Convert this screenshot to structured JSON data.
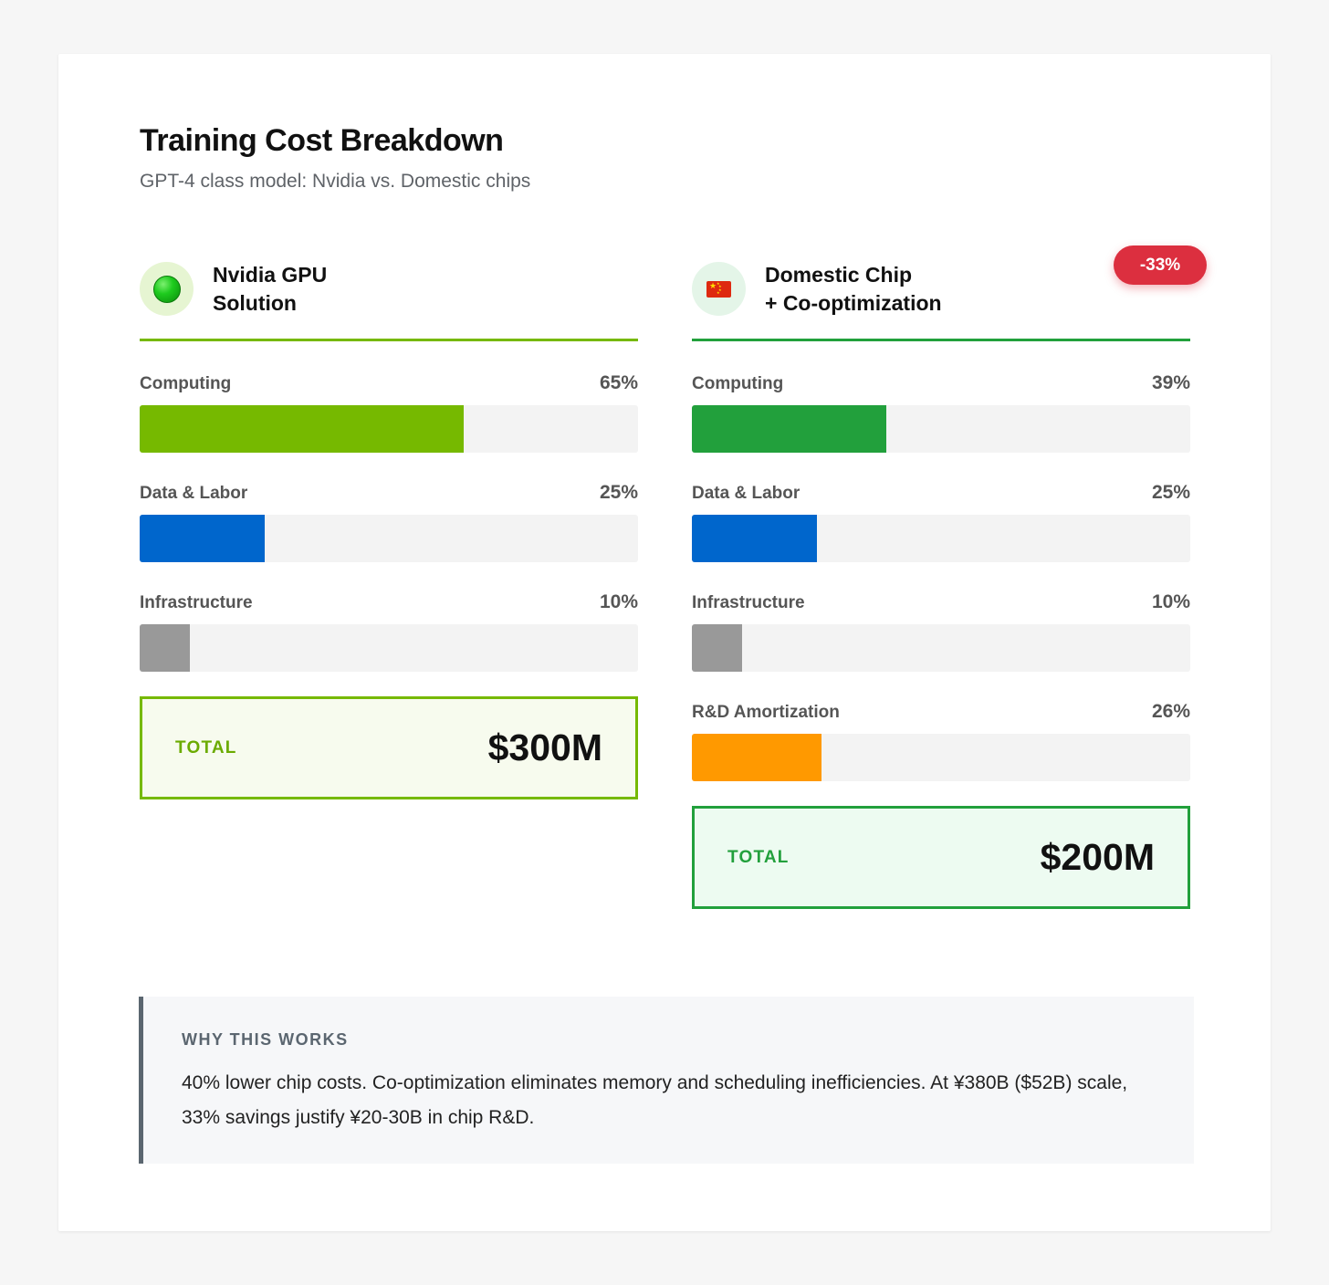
{
  "header": {
    "title": "Training Cost Breakdown",
    "subtitle": "GPT-4 class model: Nvidia vs. Domestic chips"
  },
  "colors": {
    "nvidia_green": "#76b900",
    "domestic_green": "#22a03c",
    "blue": "#0066cc",
    "gray": "#999999",
    "orange": "#ff9900",
    "badge_red": "#dc2f3f"
  },
  "chart_data": [
    {
      "type": "bar",
      "orientation": "horizontal",
      "title_line1": "Nvidia GPU",
      "title_line2": "Solution",
      "icon": "green-circle-icon",
      "categories": [
        "Computing",
        "Data & Labor",
        "Infrastructure"
      ],
      "values": [
        65,
        25,
        10
      ],
      "value_labels": [
        "65%",
        "25%",
        "10%"
      ],
      "colors": [
        "#76b900",
        "#0066cc",
        "#999999"
      ],
      "xlim": [
        0,
        100
      ],
      "total_label": "TOTAL",
      "total_value": "$300M"
    },
    {
      "type": "bar",
      "orientation": "horizontal",
      "title_line1": "Domestic Chip",
      "title_line2": "+ Co-optimization",
      "icon": "china-flag-icon",
      "badge": "-33%",
      "categories": [
        "Computing",
        "Data & Labor",
        "Infrastructure",
        "R&D Amortization"
      ],
      "values": [
        39,
        25,
        10,
        26
      ],
      "value_labels": [
        "39%",
        "25%",
        "10%",
        "26%"
      ],
      "colors": [
        "#22a03c",
        "#0066cc",
        "#999999",
        "#ff9900"
      ],
      "xlim": [
        0,
        100
      ],
      "total_label": "TOTAL",
      "total_value": "$200M"
    }
  ],
  "note": {
    "label": "WHY THIS WORKS",
    "text": "40% lower chip costs. Co-optimization eliminates memory and scheduling inefficiencies. At ¥380B ($52B) scale, 33% savings justify ¥20-30B in chip R&D."
  }
}
